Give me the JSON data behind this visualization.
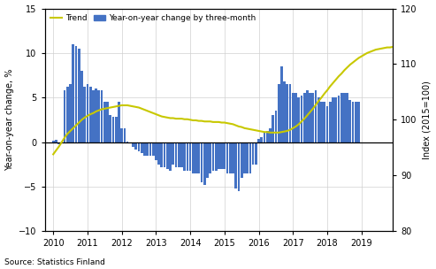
{
  "ylabel_left": "Year-on-year change, %",
  "ylabel_right": "Index (2015=100)",
  "source": "Source: Statistics Finland",
  "ylim_left": [
    -10,
    15
  ],
  "ylim_right": [
    80,
    120
  ],
  "yticks_left": [
    -10,
    -5,
    0,
    5,
    10,
    15
  ],
  "yticks_right": [
    80,
    90,
    100,
    110,
    120
  ],
  "bar_color": "#4472C4",
  "trend_color": "#C8C800",
  "legend_trend": "Trend",
  "legend_bar": "Year-on-year change by three-month",
  "bar_data": [
    0.2,
    0.3,
    -0.2,
    0.1,
    5.8,
    6.2,
    6.5,
    11.0,
    10.8,
    10.5,
    8.0,
    6.2,
    6.5,
    6.2,
    5.8,
    6.0,
    5.8,
    5.8,
    4.5,
    4.5,
    3.0,
    2.8,
    2.8,
    4.5,
    1.5,
    1.5,
    0.1,
    0.0,
    -0.5,
    -0.8,
    -1.0,
    -1.2,
    -1.5,
    -1.5,
    -1.5,
    -1.5,
    -2.0,
    -2.5,
    -2.8,
    -2.8,
    -3.0,
    -3.2,
    -2.5,
    -2.8,
    -2.8,
    -2.8,
    -3.2,
    -3.2,
    -3.2,
    -3.5,
    -3.5,
    -3.5,
    -4.5,
    -4.8,
    -4.0,
    -3.5,
    -3.2,
    -3.2,
    -3.0,
    -3.0,
    -3.0,
    -3.5,
    -3.5,
    -3.5,
    -5.2,
    -5.5,
    -4.0,
    -3.5,
    -3.5,
    -3.5,
    -2.5,
    -2.5,
    0.4,
    0.5,
    1.0,
    1.2,
    1.5,
    3.0,
    3.5,
    6.5,
    8.5,
    6.8,
    6.5,
    6.5,
    5.5,
    5.5,
    5.0,
    5.2,
    5.5,
    5.8,
    5.5,
    5.5,
    5.8,
    5.0,
    4.5,
    4.5,
    4.0,
    4.5,
    5.0,
    5.0,
    5.2,
    5.5,
    5.5,
    5.5,
    4.7,
    4.5,
    4.5,
    4.5
  ],
  "trend_x": [
    2010.0,
    2010.083,
    2010.167,
    2010.25,
    2010.333,
    2010.417,
    2010.5,
    2010.583,
    2010.667,
    2010.75,
    2010.833,
    2010.917,
    2011.0,
    2011.083,
    2011.167,
    2011.25,
    2011.333,
    2011.417,
    2011.5,
    2011.583,
    2011.667,
    2011.75,
    2011.833,
    2011.917,
    2012.0,
    2012.083,
    2012.167,
    2012.25,
    2012.333,
    2012.417,
    2012.5,
    2012.583,
    2012.667,
    2012.75,
    2012.833,
    2012.917,
    2013.0,
    2013.083,
    2013.167,
    2013.25,
    2013.333,
    2013.417,
    2013.5,
    2013.583,
    2013.667,
    2013.75,
    2013.833,
    2013.917,
    2014.0,
    2014.083,
    2014.167,
    2014.25,
    2014.333,
    2014.417,
    2014.5,
    2014.583,
    2014.667,
    2014.75,
    2014.833,
    2014.917,
    2015.0,
    2015.083,
    2015.167,
    2015.25,
    2015.333,
    2015.417,
    2015.5,
    2015.583,
    2015.667,
    2015.75,
    2015.833,
    2015.917,
    2016.0,
    2016.083,
    2016.167,
    2016.25,
    2016.333,
    2016.417,
    2016.5,
    2016.583,
    2016.667,
    2016.75,
    2016.833,
    2016.917,
    2017.0,
    2017.083,
    2017.167,
    2017.25,
    2017.333,
    2017.417,
    2017.5,
    2017.583,
    2017.667,
    2017.75,
    2017.833,
    2017.917,
    2018.0,
    2018.083,
    2018.167,
    2018.25,
    2018.333,
    2018.417,
    2018.5,
    2018.583,
    2018.667,
    2018.75,
    2018.833,
    2018.917,
    2019.0,
    2019.083,
    2019.167,
    2019.25,
    2019.333,
    2019.417,
    2019.5,
    2019.583,
    2019.667,
    2019.75,
    2019.833,
    2019.917
  ],
  "trend_y": [
    93.8,
    94.5,
    95.2,
    96.0,
    96.8,
    97.5,
    98.0,
    98.5,
    99.0,
    99.5,
    100.0,
    100.4,
    100.7,
    101.0,
    101.2,
    101.5,
    101.7,
    101.9,
    102.0,
    102.1,
    102.2,
    102.3,
    102.4,
    102.5,
    102.6,
    102.6,
    102.6,
    102.5,
    102.4,
    102.3,
    102.2,
    102.0,
    101.8,
    101.6,
    101.4,
    101.2,
    101.0,
    100.8,
    100.6,
    100.5,
    100.4,
    100.3,
    100.3,
    100.2,
    100.2,
    100.2,
    100.1,
    100.1,
    100.0,
    99.9,
    99.9,
    99.8,
    99.8,
    99.7,
    99.7,
    99.7,
    99.6,
    99.6,
    99.6,
    99.5,
    99.5,
    99.4,
    99.3,
    99.2,
    99.0,
    98.8,
    98.7,
    98.5,
    98.4,
    98.3,
    98.2,
    98.1,
    98.0,
    97.9,
    97.8,
    97.8,
    97.7,
    97.7,
    97.7,
    97.7,
    97.8,
    97.9,
    98.0,
    98.2,
    98.5,
    98.8,
    99.2,
    99.7,
    100.2,
    100.8,
    101.4,
    102.0,
    102.7,
    103.4,
    104.0,
    104.7,
    105.3,
    106.0,
    106.6,
    107.2,
    107.8,
    108.3,
    108.9,
    109.4,
    109.9,
    110.3,
    110.7,
    111.1,
    111.4,
    111.7,
    112.0,
    112.2,
    112.4,
    112.6,
    112.7,
    112.8,
    112.9,
    113.0,
    113.0,
    113.1
  ]
}
